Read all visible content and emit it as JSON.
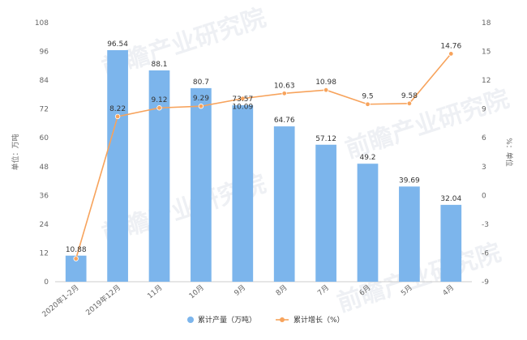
{
  "chart_data": {
    "type": "bar+line",
    "categories": [
      "2020年1-2月",
      "2019年12月",
      "11月",
      "10月",
      "9月",
      "8月",
      "7月",
      "6月",
      "5月",
      "4月"
    ],
    "series": [
      {
        "name": "累计产量（万吨）",
        "type": "bar",
        "axis": "left",
        "color": "#7cb5ec",
        "values": [
          10.88,
          96.54,
          88.1,
          80.7,
          73.57,
          64.76,
          57.12,
          49.2,
          39.69,
          32.04
        ]
      },
      {
        "name": "累计增长（%）",
        "type": "line",
        "axis": "right",
        "color": "#f7a35c",
        "values": [
          -6.6,
          8.22,
          9.12,
          9.29,
          10.09,
          10.63,
          10.98,
          9.5,
          9.58,
          14.76
        ]
      }
    ],
    "bar_labels": [
      "10.88",
      "96.54",
      "88.1",
      "80.7",
      "73.57",
      "64.76",
      "57.12",
      "49.2",
      "39.69",
      "32.04"
    ],
    "line_labels": [
      "",
      "8.22",
      "9.12",
      "9.29",
      "10.09",
      "10.63",
      "10.98",
      "9.5",
      "9.58",
      "14.76"
    ],
    "ylabel": "单位：万吨",
    "y2label": "%：单位",
    "ylim": [
      0,
      108
    ],
    "yticks": [
      0,
      12,
      24,
      36,
      48,
      60,
      72,
      84,
      96,
      108
    ],
    "y2lim": [
      -9,
      18
    ],
    "y2ticks": [
      -9,
      -6,
      -3,
      0,
      3,
      6,
      9,
      12,
      15,
      18
    ],
    "grid": false,
    "legend_position": "bottom-center"
  },
  "watermark": "前瞻产业研究院"
}
